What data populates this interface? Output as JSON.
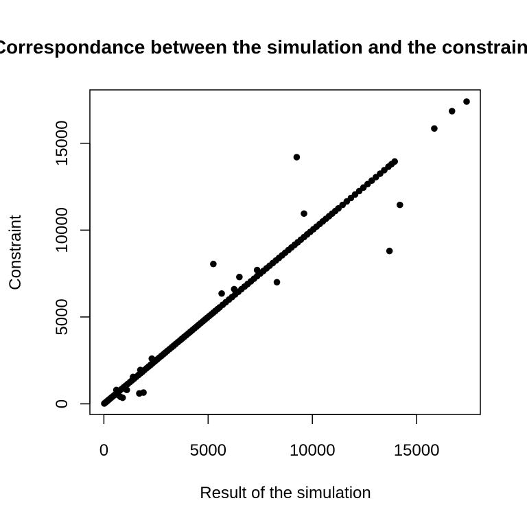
{
  "chart_data": {
    "type": "scatter",
    "title": "Correspondance between the simulation and the constraint",
    "xlabel": "Result of the simulation",
    "ylabel": "Constraint",
    "xlim": [
      0,
      18000
    ],
    "ylim": [
      0,
      18000
    ],
    "xticks": [
      0,
      5000,
      10000,
      15000
    ],
    "yticks": [
      0,
      5000,
      10000,
      15000
    ],
    "xtick_labels": [
      "0",
      "5000",
      "10000",
      "15000"
    ],
    "ytick_labels": [
      "0",
      "5000",
      "10000",
      "15000"
    ],
    "grid": false,
    "point_color": "#000000",
    "diagonal_points": [
      [
        20,
        20
      ],
      [
        60,
        60
      ],
      [
        100,
        100
      ],
      [
        150,
        150
      ],
      [
        200,
        200
      ],
      [
        260,
        260
      ],
      [
        320,
        320
      ],
      [
        380,
        380
      ],
      [
        450,
        450
      ],
      [
        520,
        520
      ],
      [
        600,
        600
      ],
      [
        680,
        680
      ],
      [
        760,
        760
      ],
      [
        850,
        850
      ],
      [
        950,
        950
      ],
      [
        1050,
        1050
      ],
      [
        1150,
        1150
      ],
      [
        1250,
        1250
      ],
      [
        1350,
        1350
      ],
      [
        1450,
        1450
      ],
      [
        1550,
        1550
      ],
      [
        1650,
        1650
      ],
      [
        1750,
        1750
      ],
      [
        1850,
        1850
      ],
      [
        1950,
        1950
      ],
      [
        2050,
        2050
      ],
      [
        2150,
        2150
      ],
      [
        2250,
        2250
      ],
      [
        2350,
        2350
      ],
      [
        2450,
        2450
      ],
      [
        2550,
        2550
      ],
      [
        2650,
        2650
      ],
      [
        2750,
        2750
      ],
      [
        2850,
        2850
      ],
      [
        2950,
        2950
      ],
      [
        3050,
        3050
      ],
      [
        3150,
        3150
      ],
      [
        3250,
        3250
      ],
      [
        3350,
        3350
      ],
      [
        3450,
        3450
      ],
      [
        3550,
        3550
      ],
      [
        3650,
        3650
      ],
      [
        3750,
        3750
      ],
      [
        3850,
        3850
      ],
      [
        3950,
        3950
      ],
      [
        4050,
        4050
      ],
      [
        4150,
        4150
      ],
      [
        4250,
        4250
      ],
      [
        4350,
        4350
      ],
      [
        4450,
        4450
      ],
      [
        4550,
        4550
      ],
      [
        4650,
        4650
      ],
      [
        4750,
        4750
      ],
      [
        4850,
        4850
      ],
      [
        4950,
        4950
      ],
      [
        5050,
        5050
      ],
      [
        5150,
        5150
      ],
      [
        5250,
        5250
      ],
      [
        5350,
        5350
      ],
      [
        5450,
        5450
      ],
      [
        5550,
        5550
      ],
      [
        5700,
        5700
      ],
      [
        5850,
        5850
      ],
      [
        6000,
        6000
      ],
      [
        6150,
        6150
      ],
      [
        6300,
        6300
      ],
      [
        6450,
        6450
      ],
      [
        6600,
        6600
      ],
      [
        6750,
        6750
      ],
      [
        6900,
        6900
      ],
      [
        7050,
        7050
      ],
      [
        7200,
        7200
      ],
      [
        7350,
        7350
      ],
      [
        7500,
        7500
      ],
      [
        7650,
        7650
      ],
      [
        7800,
        7800
      ],
      [
        7950,
        7950
      ],
      [
        8100,
        8100
      ],
      [
        8250,
        8250
      ],
      [
        8400,
        8400
      ],
      [
        8550,
        8550
      ],
      [
        8700,
        8700
      ],
      [
        8850,
        8850
      ],
      [
        9000,
        9000
      ],
      [
        9150,
        9150
      ],
      [
        9300,
        9300
      ],
      [
        9450,
        9450
      ],
      [
        9600,
        9600
      ],
      [
        9750,
        9750
      ],
      [
        9900,
        9900
      ],
      [
        10050,
        10050
      ],
      [
        10200,
        10200
      ],
      [
        10350,
        10350
      ],
      [
        10500,
        10500
      ],
      [
        10650,
        10650
      ],
      [
        10800,
        10800
      ],
      [
        10950,
        10950
      ],
      [
        11100,
        11100
      ],
      [
        11250,
        11250
      ],
      [
        11450,
        11450
      ],
      [
        11650,
        11650
      ],
      [
        11850,
        11850
      ],
      [
        12050,
        12050
      ],
      [
        12250,
        12250
      ],
      [
        12450,
        12450
      ],
      [
        12650,
        12650
      ],
      [
        12850,
        12850
      ],
      [
        13050,
        13050
      ],
      [
        13250,
        13250
      ],
      [
        13450,
        13450
      ],
      [
        13650,
        13650
      ],
      [
        13800,
        13800
      ],
      [
        13950,
        13950
      ],
      [
        15850,
        15850
      ],
      [
        16700,
        16850
      ],
      [
        17400,
        17400
      ]
    ],
    "outlier_points": [
      [
        9250,
        14200
      ],
      [
        5250,
        8050
      ],
      [
        9600,
        10950
      ],
      [
        14200,
        11450
      ],
      [
        13700,
        8800
      ],
      [
        8300,
        7000
      ],
      [
        6500,
        7300
      ],
      [
        7350,
        7700
      ],
      [
        5650,
        6350
      ],
      [
        6250,
        6600
      ],
      [
        1700,
        600
      ],
      [
        1900,
        650
      ],
      [
        2300,
        2600
      ],
      [
        1100,
        800
      ],
      [
        700,
        500
      ],
      [
        800,
        400
      ],
      [
        600,
        800
      ],
      [
        900,
        350
      ],
      [
        1400,
        1550
      ],
      [
        1750,
        1950
      ]
    ]
  }
}
